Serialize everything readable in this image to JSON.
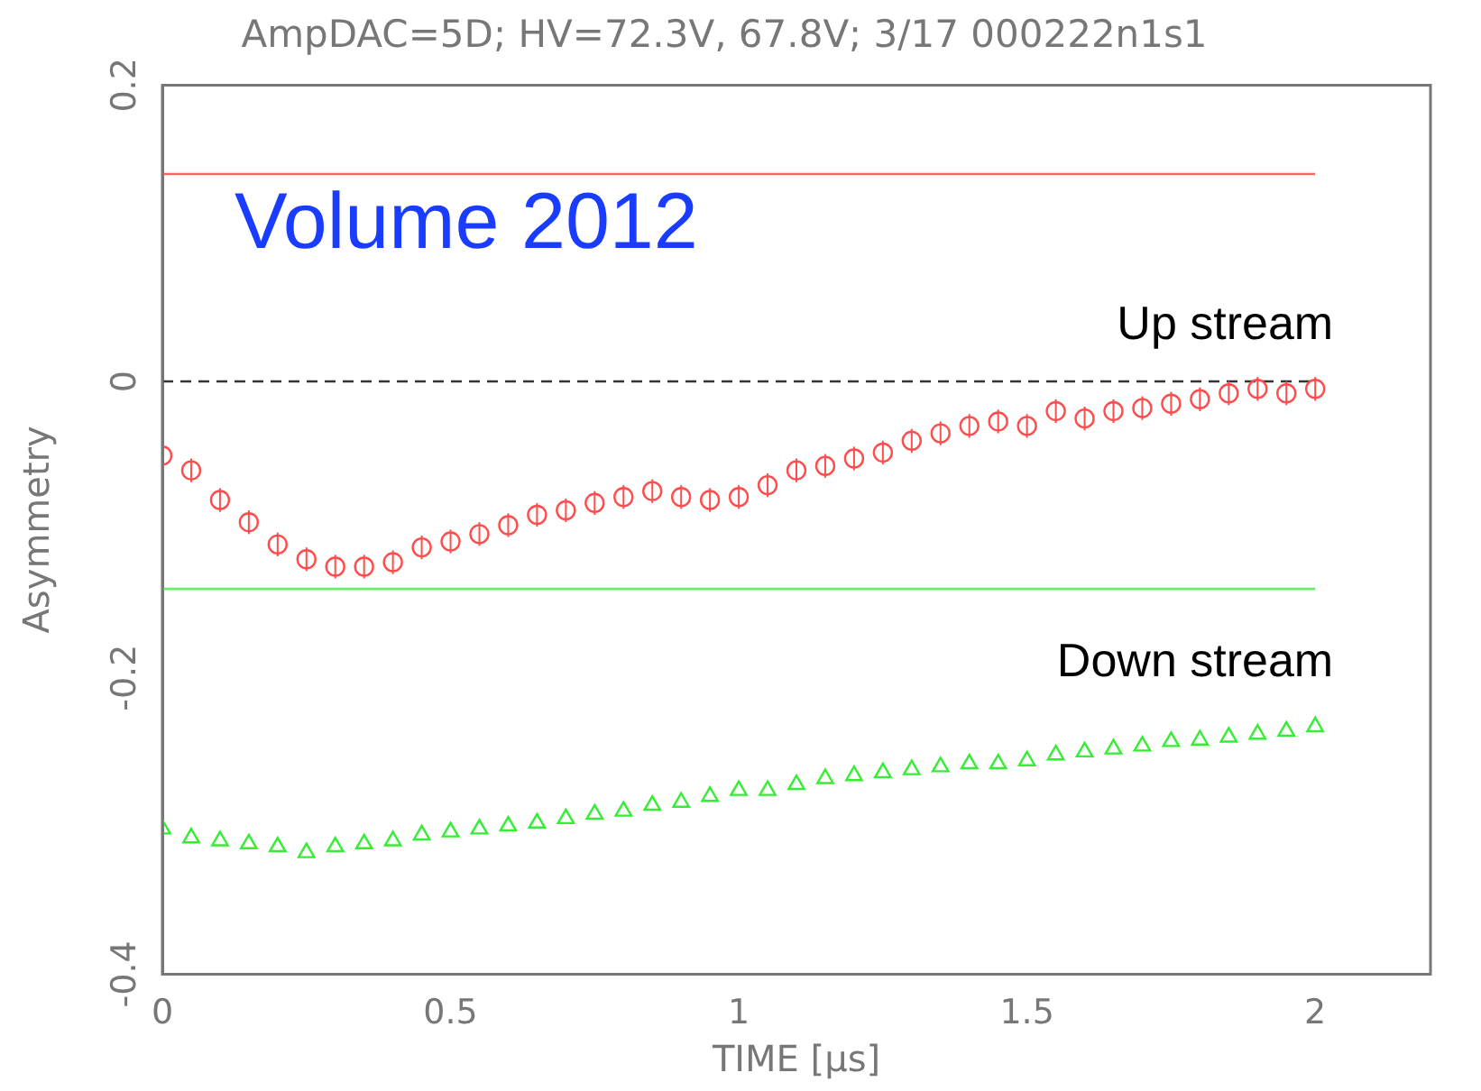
{
  "chart_data": {
    "type": "scatter",
    "title": "AmpDAC=5D; HV=72.3V, 67.8V; 3/17 000222n1s1",
    "xlabel": "TIME [μs]",
    "ylabel": "Asymmetry",
    "annotations": [
      "Volume 2012"
    ],
    "x": [
      0,
      0.05,
      0.1,
      0.15,
      0.2,
      0.25,
      0.3,
      0.35,
      0.4,
      0.45,
      0.5,
      0.55,
      0.6,
      0.65,
      0.7,
      0.75,
      0.8,
      0.85,
      0.9,
      0.95,
      1,
      1.05,
      1.1,
      1.15,
      1.2,
      1.25,
      1.3,
      1.35,
      1.4,
      1.45,
      1.5,
      1.55,
      1.6,
      1.65,
      1.7,
      1.75,
      1.8,
      1.85,
      1.9,
      1.95,
      2
    ],
    "series": [
      {
        "name": "Up stream",
        "color": "#ff4d4d",
        "marker": "circle",
        "values": [
          -0.05,
          -0.06,
          -0.08,
          -0.095,
          -0.11,
          -0.12,
          -0.125,
          -0.125,
          -0.122,
          -0.112,
          -0.108,
          -0.103,
          -0.097,
          -0.09,
          -0.087,
          -0.082,
          -0.078,
          -0.074,
          -0.078,
          -0.08,
          -0.078,
          -0.07,
          -0.06,
          -0.057,
          -0.052,
          -0.048,
          -0.04,
          -0.035,
          -0.03,
          -0.027,
          -0.03,
          -0.02,
          -0.025,
          -0.02,
          -0.018,
          -0.015,
          -0.012,
          -0.008,
          -0.005,
          -0.008,
          -0.005
        ],
        "errors": [
          0.008,
          0.008,
          0.008,
          0.008,
          0.008,
          0.008,
          0.008,
          0.008,
          0.008,
          0.008,
          0.008,
          0.008,
          0.008,
          0.008,
          0.008,
          0.008,
          0.008,
          0.008,
          0.008,
          0.008,
          0.008,
          0.008,
          0.008,
          0.008,
          0.008,
          0.008,
          0.008,
          0.008,
          0.008,
          0.008,
          0.008,
          0.008,
          0.008,
          0.008,
          0.008,
          0.008,
          0.008,
          0.008,
          0.008,
          0.008,
          0.008
        ]
      },
      {
        "name": "Down stream",
        "color": "#33ee33",
        "marker": "triangle",
        "values": [
          -0.302,
          -0.308,
          -0.31,
          -0.312,
          -0.314,
          -0.318,
          -0.314,
          -0.312,
          -0.31,
          -0.306,
          -0.304,
          -0.302,
          -0.3,
          -0.298,
          -0.295,
          -0.292,
          -0.29,
          -0.286,
          -0.284,
          -0.28,
          -0.276,
          -0.276,
          -0.272,
          -0.268,
          -0.266,
          -0.264,
          -0.262,
          -0.26,
          -0.258,
          -0.258,
          -0.256,
          -0.252,
          -0.25,
          -0.248,
          -0.246,
          -0.243,
          -0.242,
          -0.24,
          -0.238,
          -0.236,
          -0.233
        ]
      }
    ],
    "xlim": [
      0,
      2.2
    ],
    "xticks": [
      0,
      0.5,
      1,
      1.5,
      2
    ],
    "ylim": [
      -0.4,
      0.2
    ],
    "yticks": [
      -0.4,
      -0.2,
      0,
      0.2
    ],
    "grid": false,
    "legend": false,
    "ref_lines": [
      {
        "axis": "y",
        "value": 0,
        "color": "#333333",
        "line_style": "dashed"
      },
      {
        "axis": "y",
        "value": 0.14,
        "color": "#ff6060",
        "line_style": "solid"
      },
      {
        "axis": "y",
        "value": -0.14,
        "color": "#66ee66",
        "line_style": "solid"
      }
    ]
  }
}
